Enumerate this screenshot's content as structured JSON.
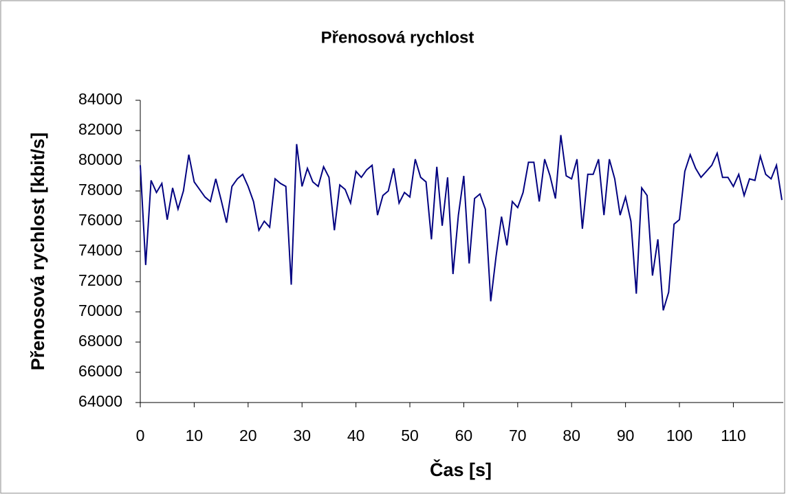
{
  "chart_data": {
    "type": "line",
    "title": "Přenosová rychlost",
    "x_label": "Čas [s]",
    "y_label": "Přenosová rychlost [kbit/s]",
    "x": [
      0,
      1,
      2,
      3,
      4,
      5,
      6,
      7,
      8,
      9,
      10,
      11,
      12,
      13,
      14,
      15,
      16,
      17,
      18,
      19,
      20,
      21,
      22,
      23,
      24,
      25,
      26,
      27,
      28,
      29,
      30,
      31,
      32,
      33,
      34,
      35,
      36,
      37,
      38,
      39,
      40,
      41,
      42,
      43,
      44,
      45,
      46,
      47,
      48,
      49,
      50,
      51,
      52,
      53,
      54,
      55,
      56,
      57,
      58,
      59,
      60,
      61,
      62,
      63,
      64,
      65,
      66,
      67,
      68,
      69,
      70,
      71,
      72,
      73,
      74,
      75,
      76,
      77,
      78,
      79,
      80,
      81,
      82,
      83,
      84,
      85,
      86,
      87,
      88,
      89,
      90,
      91,
      92,
      93,
      94,
      95,
      96,
      97,
      98,
      99,
      100,
      101,
      102,
      103,
      104,
      105,
      106,
      107,
      108,
      109,
      110,
      111,
      112,
      113,
      114,
      115,
      116,
      117,
      118,
      119
    ],
    "series": [
      {
        "name": "Přenosová rychlost",
        "color": "#000080",
        "values": [
          79700,
          73100,
          78700,
          77900,
          78500,
          76100,
          78200,
          76800,
          78000,
          80400,
          78600,
          78100,
          77600,
          77300,
          78800,
          77400,
          75900,
          78300,
          78800,
          79100,
          78300,
          77300,
          75400,
          76000,
          75600,
          78800,
          78500,
          78300,
          71800,
          81100,
          78300,
          79500,
          78600,
          78300,
          79600,
          78900,
          75400,
          78400,
          78100,
          77200,
          79300,
          78900,
          79400,
          79700,
          76400,
          77700,
          78000,
          79500,
          77200,
          77900,
          77600,
          80100,
          78900,
          78600,
          74800,
          79600,
          75700,
          78900,
          72500,
          76400,
          79000,
          73200,
          77500,
          77800,
          76800,
          70700,
          73700,
          76300,
          74400,
          77300,
          76900,
          77900,
          79900,
          79900,
          77300,
          80100,
          79000,
          77500,
          81700,
          79000,
          78800,
          80100,
          75500,
          79100,
          79100,
          80100,
          76400,
          80100,
          78800,
          76400,
          77600,
          76000,
          71200,
          78200,
          77700,
          72400,
          74800,
          70100,
          71300,
          75800,
          76100,
          79300,
          80400,
          79500,
          78900,
          79300,
          79700,
          80500,
          78900,
          78900,
          78300,
          79100,
          77700,
          78800,
          78700,
          80300,
          79100,
          78800,
          79700,
          77400
        ]
      }
    ],
    "xlim": [
      0,
      119
    ],
    "xticks": [
      0,
      10,
      20,
      30,
      40,
      50,
      60,
      70,
      80,
      90,
      100,
      110
    ],
    "ylim": [
      64000,
      84000
    ],
    "yticks": [
      64000,
      66000,
      68000,
      70000,
      72000,
      74000,
      76000,
      78000,
      80000,
      82000,
      84000
    ],
    "grid": false
  }
}
